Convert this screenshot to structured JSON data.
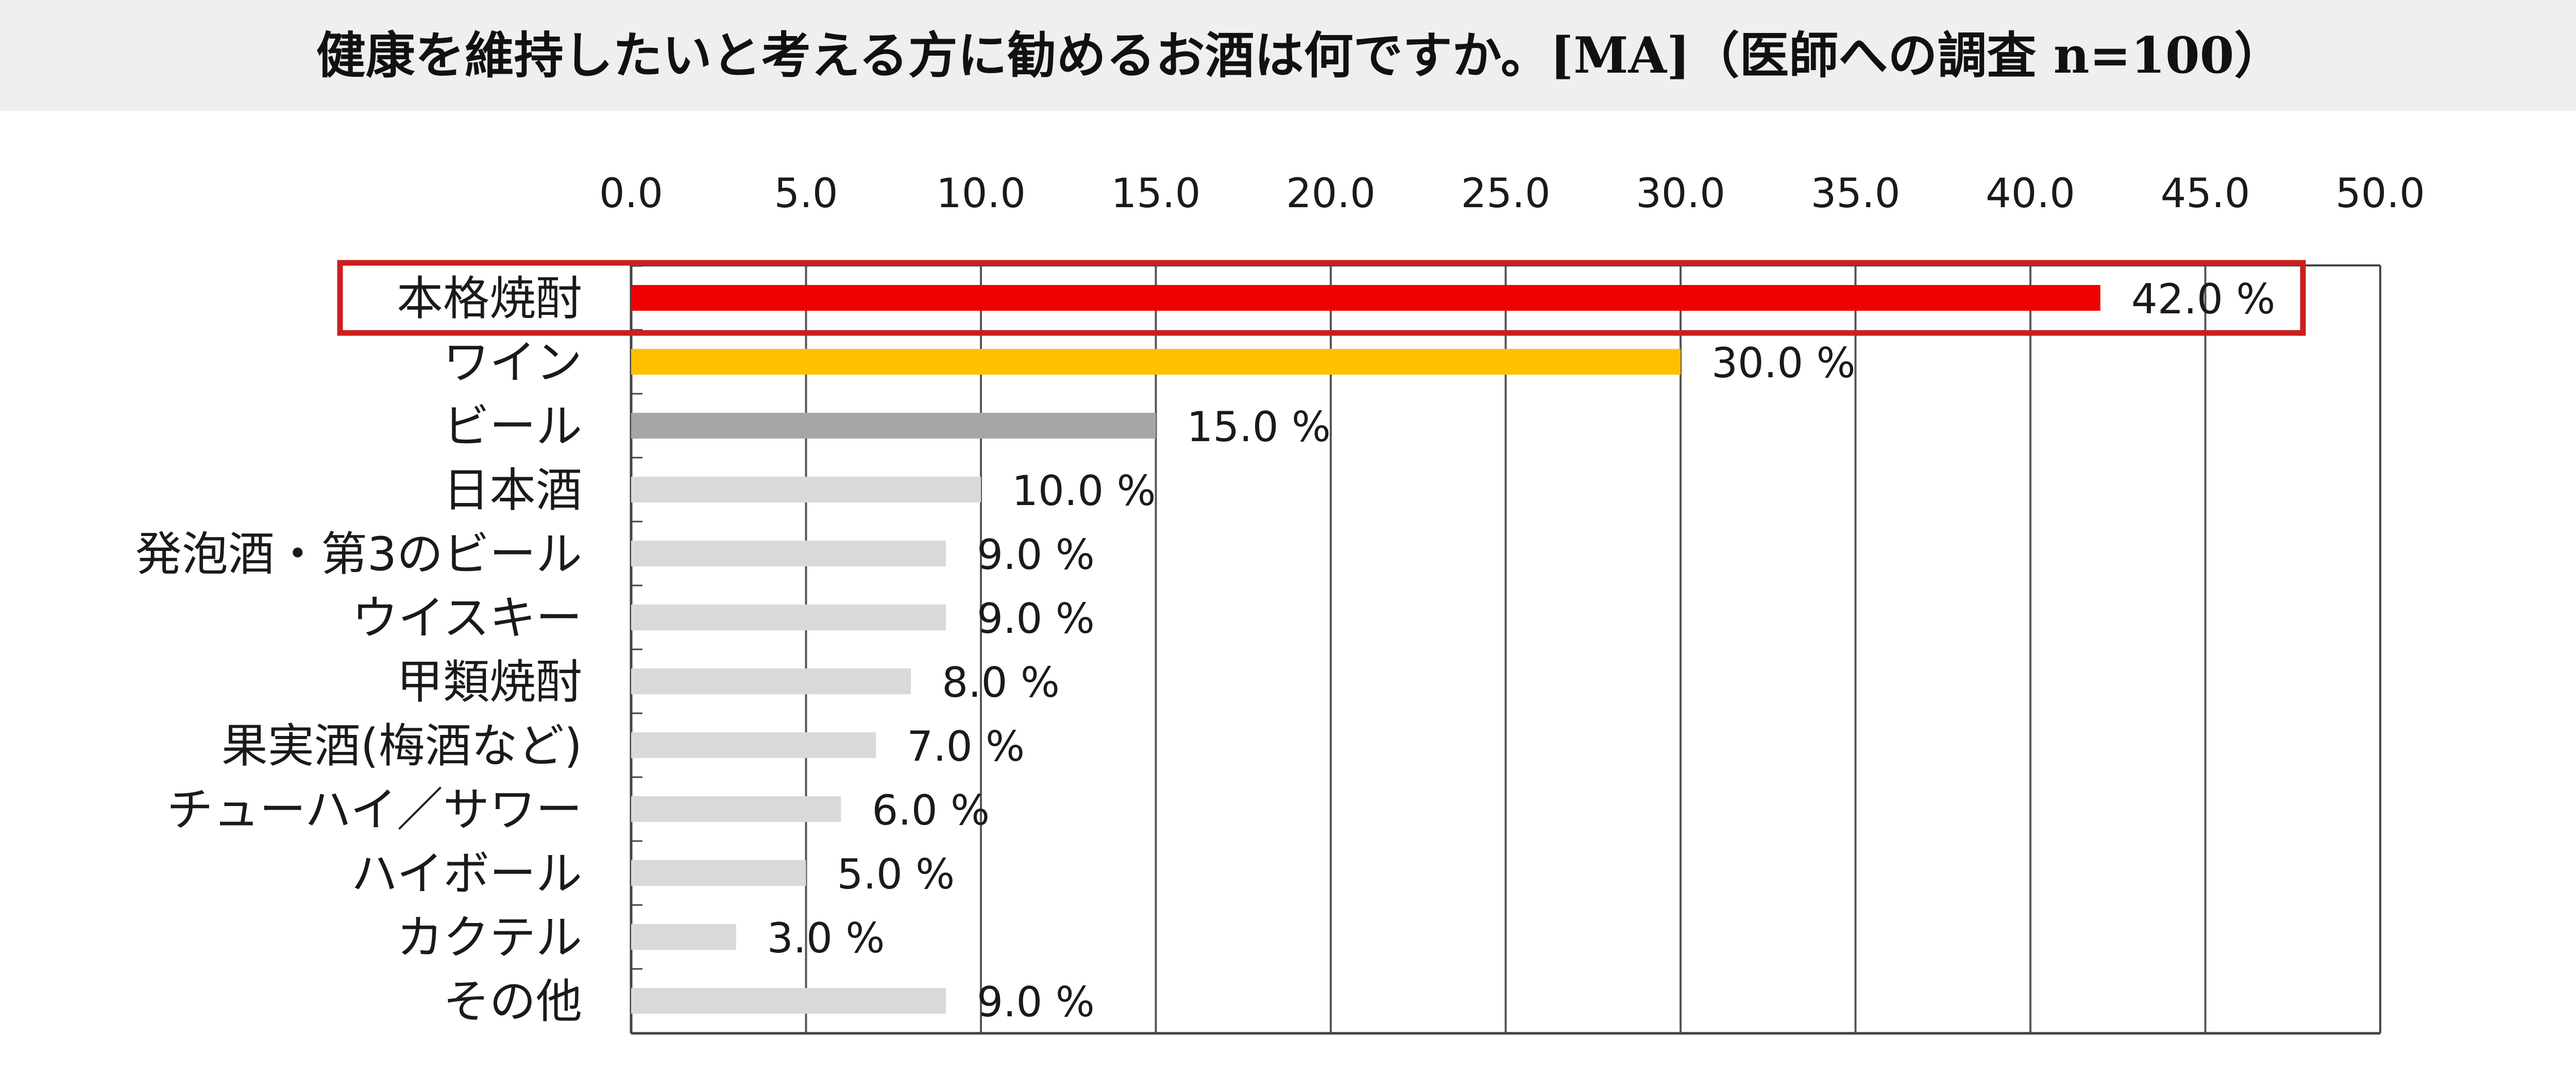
{
  "title": "健康を維持したいと考える方に勧めるお酒は何ですか。[MA]（医師への調査 n=100）",
  "chart_data": {
    "type": "bar",
    "orientation": "horizontal",
    "categories": [
      "本格焼酎",
      "ワイン",
      "ビール",
      "日本酒",
      "発泡酒・第3のビール",
      "ウイスキー",
      "甲類焼酎",
      "果実酒(梅酒など)",
      "チューハイ／サワー",
      "ハイボール",
      "カクテル",
      "その他"
    ],
    "values": [
      42.0,
      30.0,
      15.0,
      10.0,
      9.0,
      9.0,
      8.0,
      7.0,
      6.0,
      5.0,
      3.0,
      9.0
    ],
    "value_labels": [
      "42.0 %",
      "30.0 %",
      "15.0 %",
      "10.0 %",
      "9.0 %",
      "9.0 %",
      "8.0 %",
      "7.0 %",
      "6.0 %",
      "5.0 %",
      "3.0 %",
      "9.0 %"
    ],
    "bar_colors": [
      "#ee0000",
      "#ffc000",
      "#a6a6a6",
      "#d9d9d9",
      "#d9d9d9",
      "#d9d9d9",
      "#d9d9d9",
      "#d9d9d9",
      "#d9d9d9",
      "#d9d9d9",
      "#d9d9d9",
      "#d9d9d9"
    ],
    "xlim": [
      0,
      50
    ],
    "x_ticks": [
      "0.0",
      "5.0",
      "10.0",
      "15.0",
      "20.0",
      "25.0",
      "30.0",
      "35.0",
      "40.0",
      "45.0",
      "50.0"
    ],
    "x_axis_position": "top",
    "grid": "vertical",
    "highlight_category": "本格焼酎",
    "highlight_color": "#cc1f1f"
  }
}
